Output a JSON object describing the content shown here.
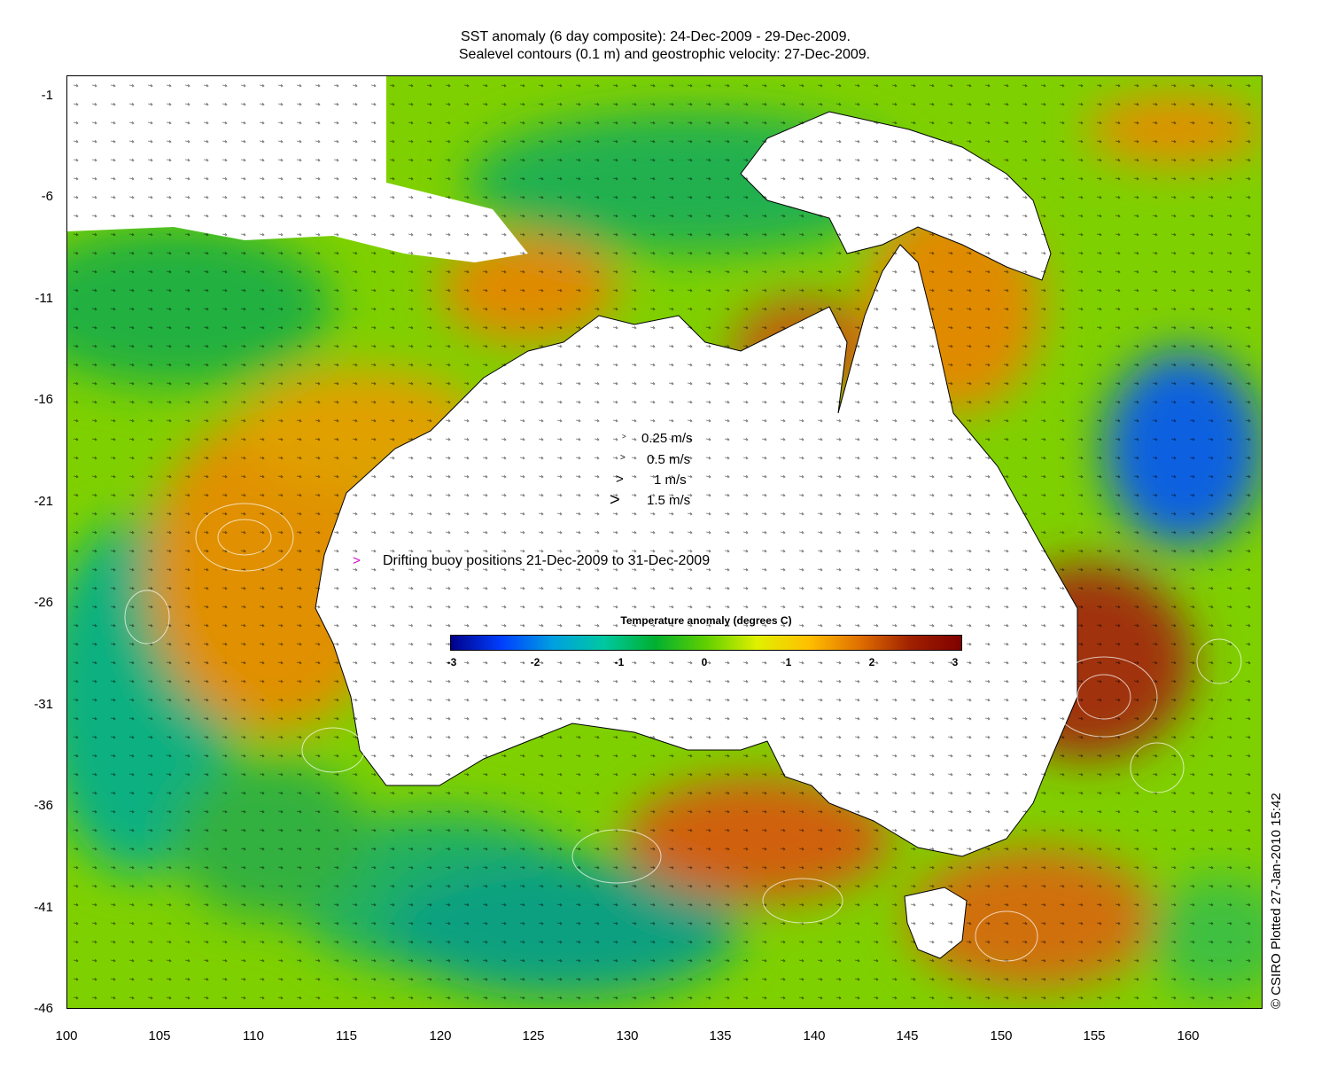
{
  "title_line1": "SST anomaly (6 day composite): 24-Dec-2009 - 29-Dec-2009.",
  "title_line2": "Sealevel contours (0.1 m) and geostrophic velocity: 27-Dec-2009.",
  "y_ticks": [
    "-1",
    "-6",
    "-11",
    "-16",
    "-21",
    "-26",
    "-31",
    "-36",
    "-41",
    "-46"
  ],
  "x_ticks": [
    "100",
    "105",
    "110",
    "115",
    "120",
    "125",
    "130",
    "135",
    "140",
    "145",
    "150",
    "155",
    "160"
  ],
  "velocity_legend": [
    {
      "glyph": ">",
      "label": "0.25 m/s"
    },
    {
      "glyph": ">",
      "label": "0.5 m/s"
    },
    {
      "glyph": ">",
      "label": "1 m/s"
    },
    {
      "glyph": ">",
      "label": "1.5 m/s"
    }
  ],
  "buoy_legend": {
    "glyph": ">",
    "label": "Drifting buoy positions 21-Dec-2009 to 31-Dec-2009",
    "color": "#d000d0"
  },
  "colorbar": {
    "title": "Temperature anomaly (degrees C)",
    "ticks": [
      "-3",
      "-2",
      "-1",
      "0",
      "1",
      "2",
      "3"
    ],
    "colors": [
      "#00008b",
      "#0040ff",
      "#00a0e0",
      "#00c8a0",
      "#00b030",
      "#60d000",
      "#e0f000",
      "#ffc000",
      "#e07000",
      "#a02000",
      "#800000"
    ]
  },
  "credit": "© CSIRO Plotted 27-Jan-2010 15:42"
}
